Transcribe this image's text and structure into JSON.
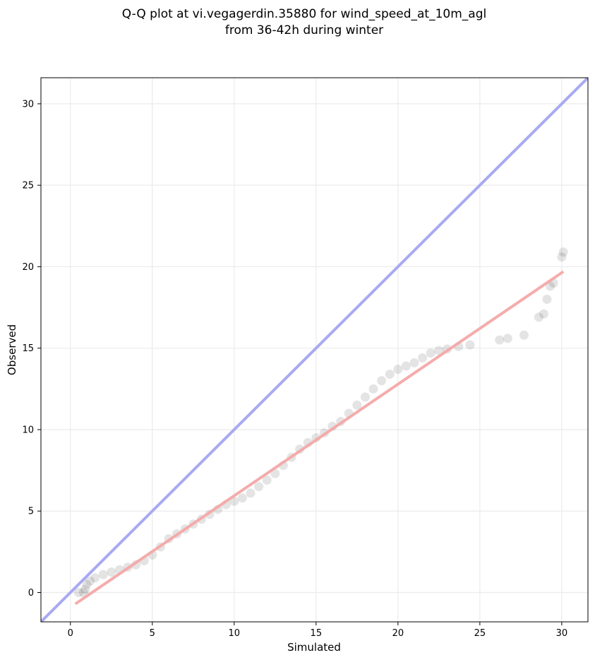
{
  "chart_data": {
    "type": "scatter",
    "title_lines": [
      "Q-Q plot at vi.vegagerdin.35880 for wind_speed_at_10m_agl",
      "from 36-42h during winter"
    ],
    "xlabel": "Simulated",
    "ylabel": "Observed",
    "xlim": [
      -1.8,
      31.6
    ],
    "ylim": [
      -1.8,
      31.6
    ],
    "x_ticks": [
      0,
      5,
      10,
      15,
      20,
      25,
      30
    ],
    "y_ticks": [
      0,
      5,
      10,
      15,
      20,
      25,
      30
    ],
    "x_tick_labels": [
      "0",
      "5",
      "10",
      "15",
      "20",
      "25",
      "30"
    ],
    "y_tick_labels": [
      "0",
      "5",
      "10",
      "15",
      "20",
      "25",
      "30"
    ],
    "grid": true,
    "series": [
      {
        "kind": "quantile_points",
        "color": "#222222",
        "x": [
          0.5,
          0.8,
          0.9,
          1.0,
          1.2,
          1.5,
          2.0,
          2.5,
          3.0,
          3.5,
          4.0,
          4.5,
          5.0,
          5.5,
          6.0,
          6.5,
          7.0,
          7.5,
          8.0,
          8.5,
          9.0,
          9.5,
          10.0,
          10.5,
          11.0,
          11.5,
          12.0,
          12.5,
          13.0,
          13.5,
          14.0,
          14.5,
          15.0,
          15.5,
          16.0,
          16.5,
          17.0,
          17.5,
          18.0,
          18.5,
          19.0,
          19.5,
          20.0,
          20.5,
          21.0,
          21.5,
          22.0,
          22.5,
          23.0,
          23.7,
          24.4,
          26.2,
          26.7,
          27.7,
          28.6,
          28.9,
          29.1,
          29.3,
          29.5,
          30.0,
          30.1
        ],
        "y": [
          0.0,
          0.0,
          0.2,
          0.5,
          0.7,
          0.9,
          1.1,
          1.25,
          1.4,
          1.55,
          1.7,
          1.95,
          2.3,
          2.8,
          3.3,
          3.6,
          3.9,
          4.2,
          4.5,
          4.8,
          5.1,
          5.4,
          5.6,
          5.8,
          6.1,
          6.5,
          6.9,
          7.3,
          7.8,
          8.3,
          8.8,
          9.2,
          9.5,
          9.8,
          10.2,
          10.5,
          11.0,
          11.5,
          12.0,
          12.5,
          13.0,
          13.4,
          13.7,
          13.9,
          14.1,
          14.4,
          14.7,
          14.85,
          14.95,
          15.1,
          15.2,
          15.5,
          15.6,
          15.8,
          16.9,
          17.1,
          18.0,
          18.8,
          19.0,
          20.6,
          20.9
        ]
      },
      {
        "kind": "identity_line",
        "color": "#a8aaf2",
        "x": [
          -1.8,
          31.6
        ],
        "y": [
          -1.8,
          31.6
        ]
      },
      {
        "kind": "fit_line",
        "color": "#f4a8a8",
        "x": [
          0.3,
          30.1
        ],
        "y": [
          -0.7,
          19.7
        ]
      }
    ]
  }
}
